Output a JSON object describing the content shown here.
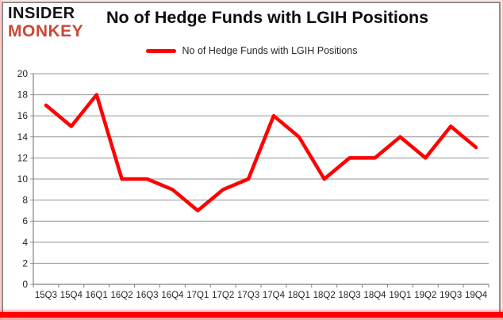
{
  "brand": {
    "line1": "INSIDER",
    "line2": "MONKEY",
    "accent_color": "#c8483a"
  },
  "header": {
    "title": "No of Hedge Funds with LGIH Positions"
  },
  "legend": {
    "label": "No of Hedge Funds with LGIH Positions",
    "swatch_color": "#ff0000"
  },
  "chart_data": {
    "type": "line",
    "title": "No of Hedge Funds with LGIH Positions",
    "categories": [
      "15Q3",
      "15Q4",
      "16Q1",
      "16Q2",
      "16Q3",
      "16Q4",
      "17Q1",
      "17Q2",
      "17Q3",
      "17Q4",
      "18Q1",
      "18Q2",
      "18Q3",
      "18Q4",
      "19Q1",
      "19Q2",
      "19Q3",
      "19Q4"
    ],
    "series": [
      {
        "name": "No of Hedge Funds with LGIH Positions",
        "values": [
          17,
          15,
          18,
          10,
          10,
          9,
          7,
          9,
          10,
          16,
          14,
          10,
          12,
          12,
          14,
          12,
          15,
          13
        ],
        "color": "#ff0000"
      }
    ],
    "xlabel": "",
    "ylabel": "",
    "ylim": [
      0,
      20
    ],
    "ytick_step": 2,
    "grid": true,
    "legend_position": "top-center",
    "gridline_color": "#949494",
    "axis_line_color": "#808080",
    "axis_text_color": "#262626",
    "line_width": 4.5
  }
}
